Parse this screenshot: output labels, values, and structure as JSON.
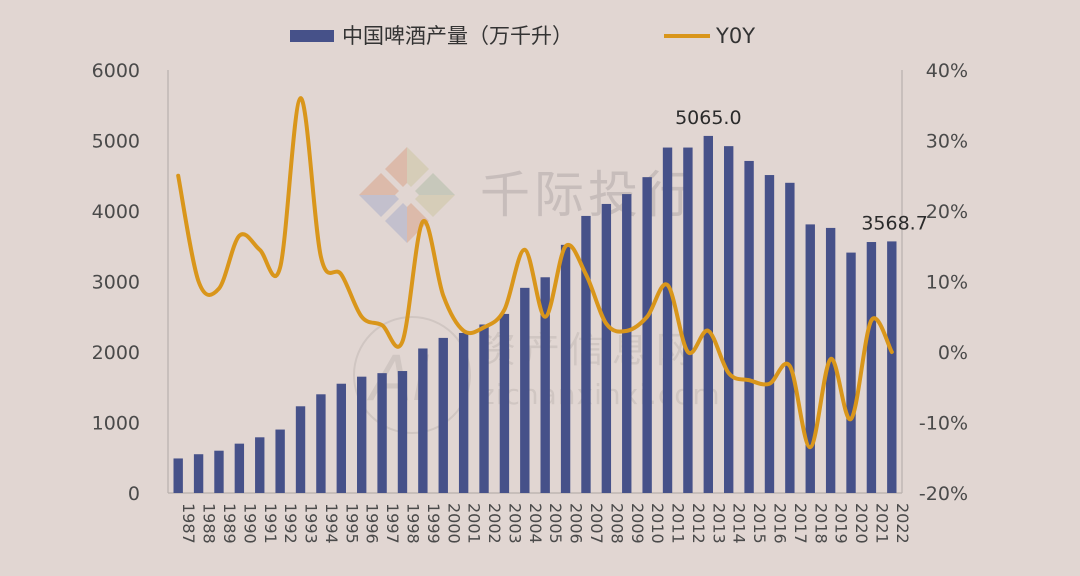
{
  "chart_data": {
    "type": "bar+line",
    "categories": [
      "1987",
      "1988",
      "1989",
      "1990",
      "1991",
      "1992",
      "1993",
      "1994",
      "1995",
      "1996",
      "1997",
      "1998",
      "1999",
      "2000",
      "2001",
      "2002",
      "2003",
      "2004",
      "2005",
      "2006",
      "2007",
      "2008",
      "2009",
      "2010",
      "2011",
      "2012",
      "2013",
      "2014",
      "2015",
      "2016",
      "2017",
      "2018",
      "2019",
      "2020",
      "2021",
      "2022"
    ],
    "series": [
      {
        "name": "中国啤酒产量（万千升）",
        "type": "bar",
        "axis": "left",
        "color": "#465189",
        "values": [
          490,
          550,
          600,
          700,
          790,
          900,
          1230,
          1400,
          1550,
          1650,
          1700,
          1730,
          2050,
          2200,
          2270,
          2390,
          2540,
          2910,
          3060,
          3520,
          3930,
          4100,
          4240,
          4480,
          4900,
          4900,
          5065,
          4920,
          4710,
          4510,
          4400,
          3810,
          3760,
          3410,
          3560,
          3568.7
        ]
      },
      {
        "name": "Y0Y",
        "type": "line",
        "axis": "right",
        "color": "#d9961b",
        "values": [
          25,
          10,
          9,
          16.5,
          14.5,
          12,
          36,
          13.5,
          11,
          5,
          3.8,
          1.5,
          18.5,
          8,
          3,
          3.5,
          6,
          14.5,
          5,
          15,
          11,
          4,
          3,
          5,
          9.5,
          0,
          3,
          -3,
          -4,
          -4.5,
          -2,
          -13.5,
          -1,
          -9.5,
          4.5,
          0
        ]
      }
    ],
    "y_left": {
      "min": 0,
      "max": 6000,
      "ticks": [
        "0",
        "1000",
        "2000",
        "3000",
        "4000",
        "5000",
        "6000"
      ]
    },
    "y_right": {
      "min": -20,
      "max": 40,
      "ticks": [
        "-20%",
        "-10%",
        "0%",
        "10%",
        "20%",
        "30%",
        "40%"
      ]
    },
    "annotations": [
      {
        "category": "2013",
        "text": "5065.0"
      },
      {
        "category": "2022",
        "text": "3568.7"
      }
    ],
    "legend_position": "top-center",
    "grid": false
  },
  "watermark": {
    "brand": "千际投行",
    "site_name": "资产信息网",
    "site_url": "zichanxinxi.com",
    "logo_letters": "AI"
  }
}
